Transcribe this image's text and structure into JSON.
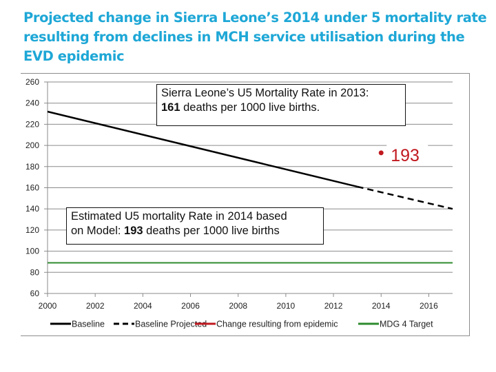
{
  "title": "Projected change in Sierra Leone’s 2014 under 5 mortality rate resulting from declines in MCH service utilisation during the EVD epidemic",
  "annotations": {
    "box2013": {
      "line1": "Sierra Leone’s U5 Mortality Rate in 2013:",
      "bold": "161",
      "line2_rest": " deaths per 1000 live births."
    },
    "box2014": {
      "line1": "Estimated U5 mortality Rate in 2014 based",
      "line2_pre": "on Model: ",
      "bold": "193",
      "line2_rest": " deaths per 1000 live births"
    },
    "point_label": "193"
  },
  "chart_data": {
    "type": "line",
    "title": "Projected change in Sierra Leone’s 2014 under 5 mortality rate resulting from declines in MCH service utilisation during the EVD epidemic",
    "xlabel": "",
    "ylabel": "",
    "xlim": [
      2000,
      2017
    ],
    "ylim": [
      60,
      260
    ],
    "x_ticks": [
      2000,
      2002,
      2004,
      2006,
      2008,
      2010,
      2012,
      2014,
      2016
    ],
    "y_ticks": [
      60,
      80,
      100,
      120,
      140,
      160,
      180,
      200,
      220,
      240,
      260
    ],
    "grid": true,
    "legend_position": "bottom",
    "series": [
      {
        "name": "Baseline",
        "color": "#000000",
        "style": "solid",
        "x": [
          2000,
          2013
        ],
        "y": [
          232,
          161
        ]
      },
      {
        "name": "Baseline Projected",
        "color": "#000000",
        "style": "dashed",
        "x": [
          2013,
          2017
        ],
        "y": [
          161,
          140
        ]
      },
      {
        "name": "Change resulting from epidemic",
        "color": "#c0181f",
        "style": "point",
        "x": [
          2014
        ],
        "y": [
          193
        ]
      },
      {
        "name": "MDG 4 Target",
        "color": "#2e8b2e",
        "style": "solid",
        "x": [
          2000,
          2017
        ],
        "y": [
          89,
          89
        ]
      }
    ]
  }
}
